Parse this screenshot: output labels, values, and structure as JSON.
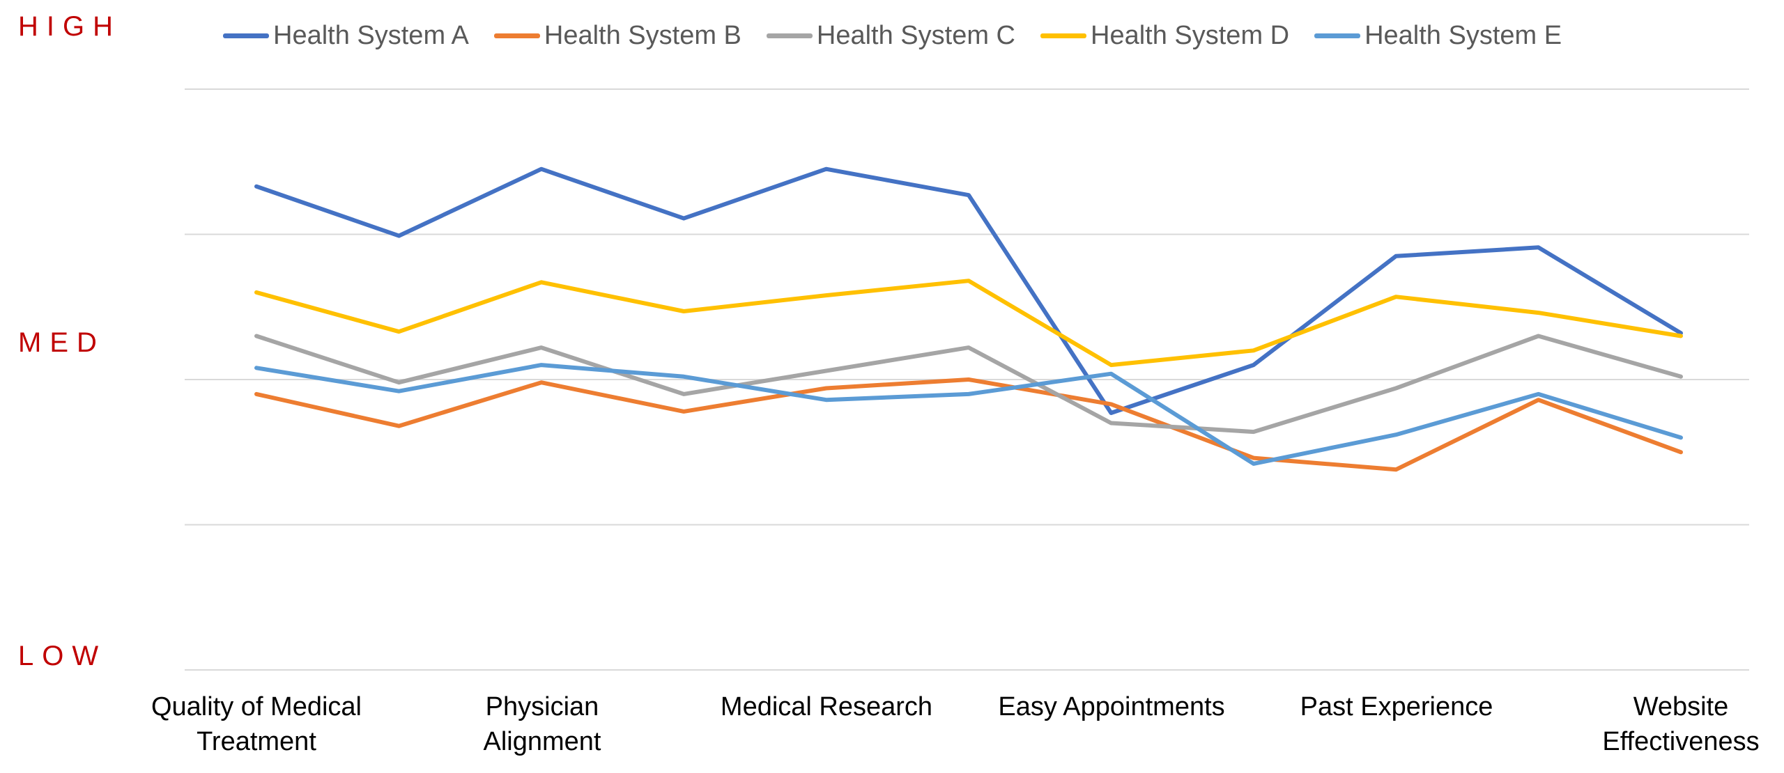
{
  "chart_data": {
    "type": "line",
    "title": "",
    "xlabel": "",
    "ylabel": "",
    "y_level_labels": {
      "high": "HIGH",
      "med": "MED",
      "low": "LOW"
    },
    "ylim": [
      0,
      4
    ],
    "grid": true,
    "legend_position": "top",
    "categories": [
      "Quality of Medical Treatment",
      "",
      "Physician Alignment",
      "",
      "Medical Research",
      "",
      "Easy Appointments",
      "",
      "Past Experience",
      "",
      "Website Effectiveness"
    ],
    "tick_labels": [
      "Quality of Medical\nTreatment",
      "Physician\nAlignment",
      "Medical Research",
      "Easy Appointments",
      "Past Experience",
      "Website\nEffectiveness"
    ],
    "series": [
      {
        "name": "Health System A",
        "color": "#4472c4",
        "values": [
          3.33,
          2.99,
          3.45,
          3.11,
          3.45,
          3.27,
          1.77,
          2.1,
          2.85,
          2.91,
          2.32
        ]
      },
      {
        "name": "Health System B",
        "color": "#ed7d31",
        "values": [
          1.9,
          1.68,
          1.98,
          1.78,
          1.94,
          2.0,
          1.83,
          1.46,
          1.38,
          1.86,
          1.5
        ]
      },
      {
        "name": "Health System C",
        "color": "#a5a5a5",
        "values": [
          2.3,
          1.98,
          2.22,
          1.9,
          2.06,
          2.22,
          1.7,
          1.64,
          1.94,
          2.3,
          2.02
        ]
      },
      {
        "name": "Health System D",
        "color": "#ffc000",
        "values": [
          2.6,
          2.33,
          2.67,
          2.47,
          2.58,
          2.68,
          2.1,
          2.2,
          2.57,
          2.46,
          2.3
        ]
      },
      {
        "name": "Health System E",
        "color": "#5b9bd5",
        "values": [
          2.08,
          1.92,
          2.1,
          2.02,
          1.86,
          1.9,
          2.04,
          1.42,
          1.62,
          1.9,
          1.6
        ]
      }
    ]
  }
}
